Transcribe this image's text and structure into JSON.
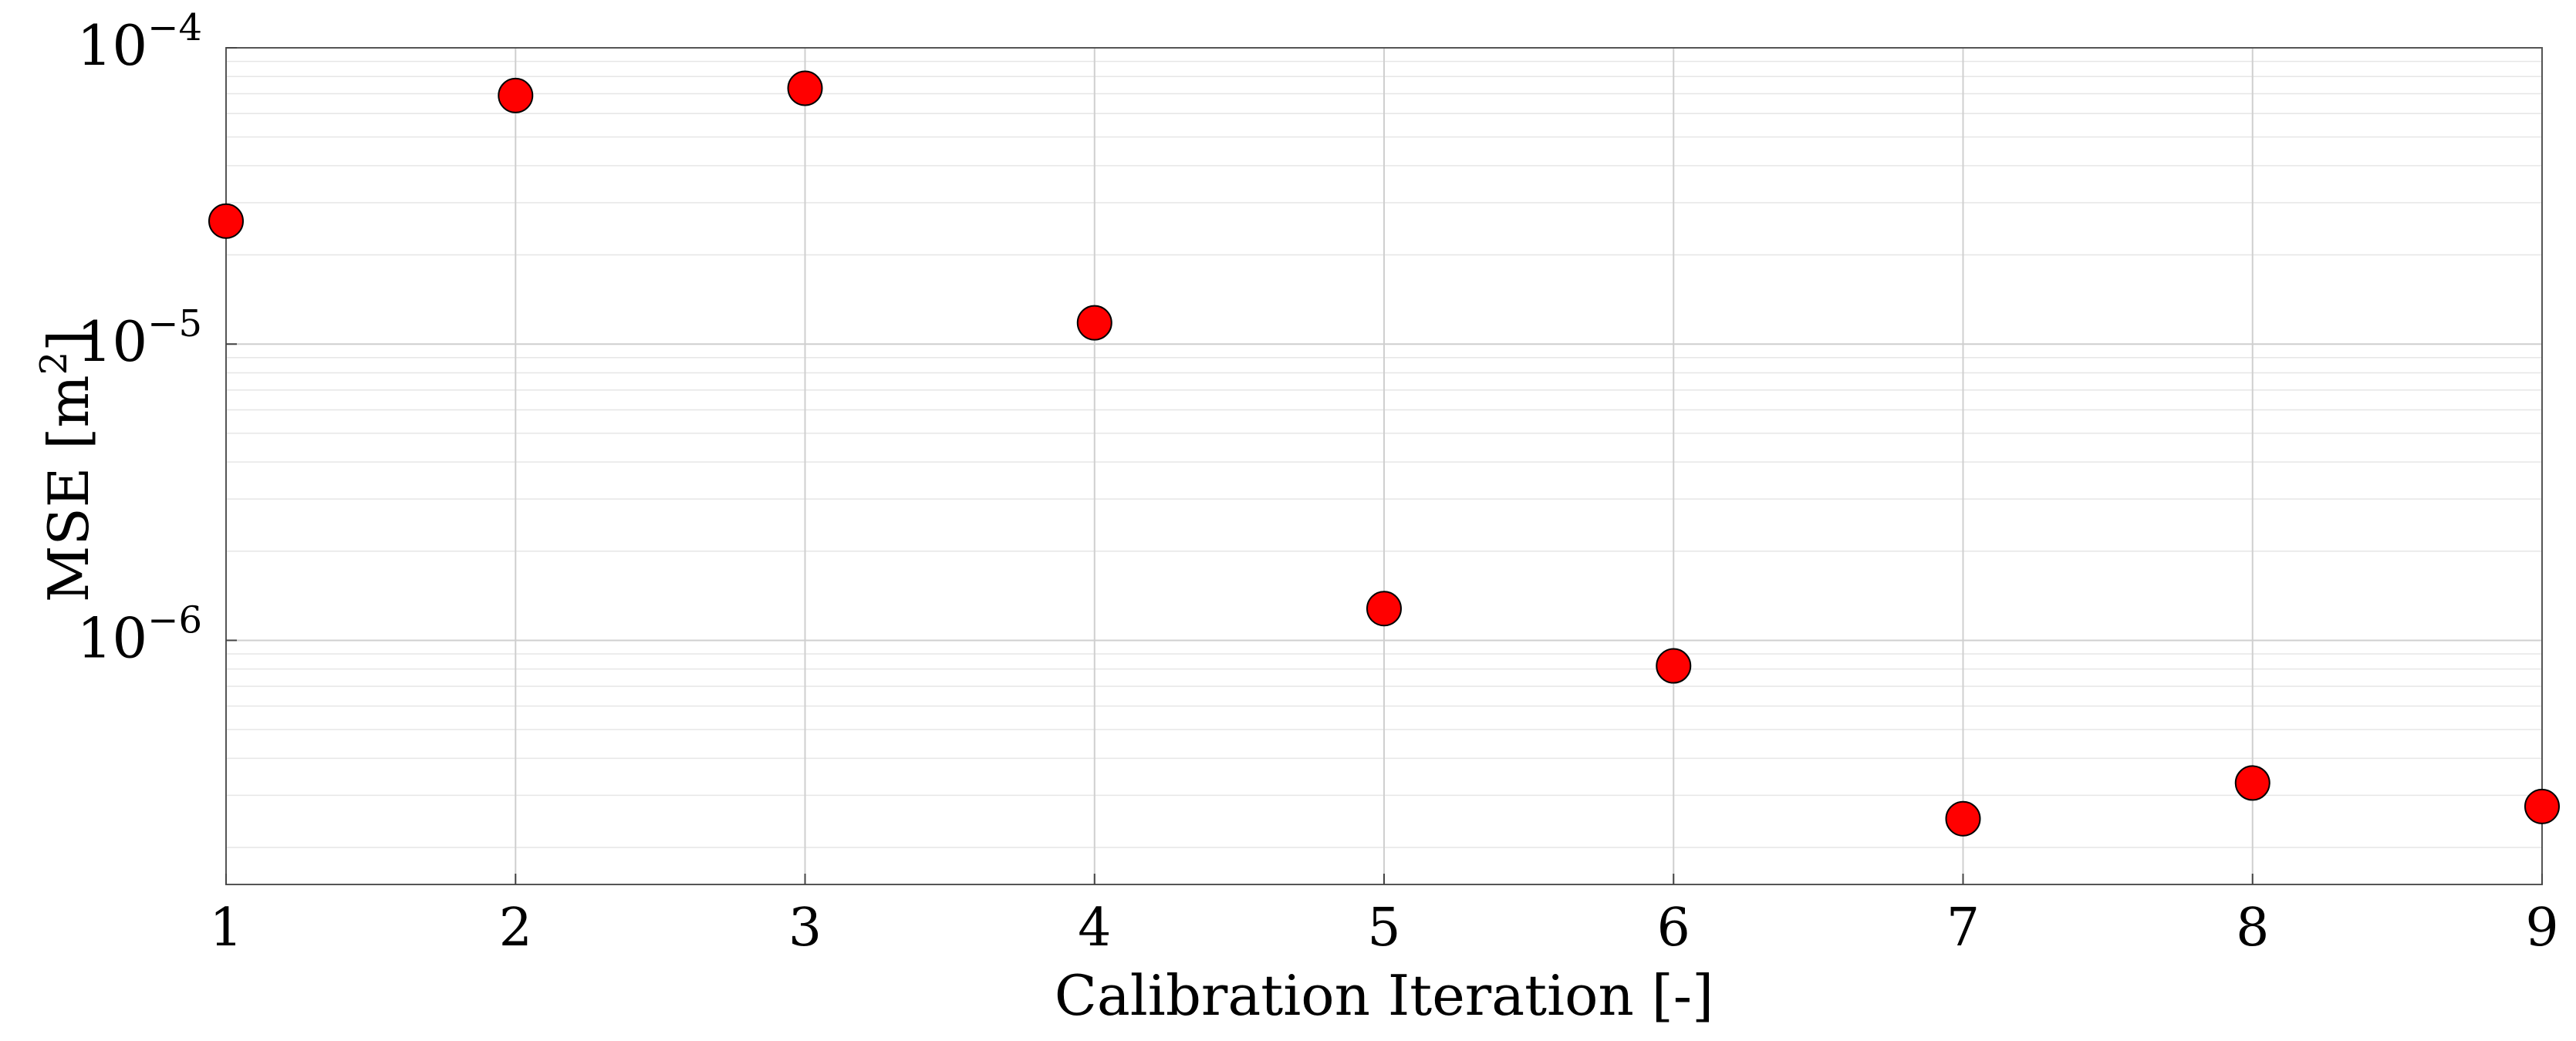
{
  "chart_data": {
    "type": "scatter",
    "xlabel": "Calibration Iteration [-]",
    "ylabel_text": "MSE [m",
    "ylabel_sup": "2",
    "ylabel_close": "]",
    "x_ticks": [
      "1",
      "2",
      "3",
      "4",
      "5",
      "6",
      "7",
      "8",
      "9"
    ],
    "xlim": [
      1,
      9
    ],
    "ylim": [
      1.5e-07,
      0.0001
    ],
    "y_scale": "log",
    "y_ticks": [
      {
        "value": 0.0001,
        "base": "10",
        "exp": "−4"
      },
      {
        "value": 1e-05,
        "base": "10",
        "exp": "−5"
      },
      {
        "value": 1e-06,
        "base": "10",
        "exp": "−6"
      }
    ],
    "grid": true,
    "marker_color": "#ff0000",
    "marker_edge": "#000000",
    "series": [
      {
        "x": [
          1,
          2,
          3,
          4,
          5,
          6,
          7,
          8,
          9
        ],
        "y": [
          2.6e-05,
          6.9e-05,
          7.3e-05,
          1.18e-05,
          1.28e-06,
          8.2e-07,
          2.5e-07,
          3.3e-07,
          2.75e-07
        ]
      }
    ]
  }
}
